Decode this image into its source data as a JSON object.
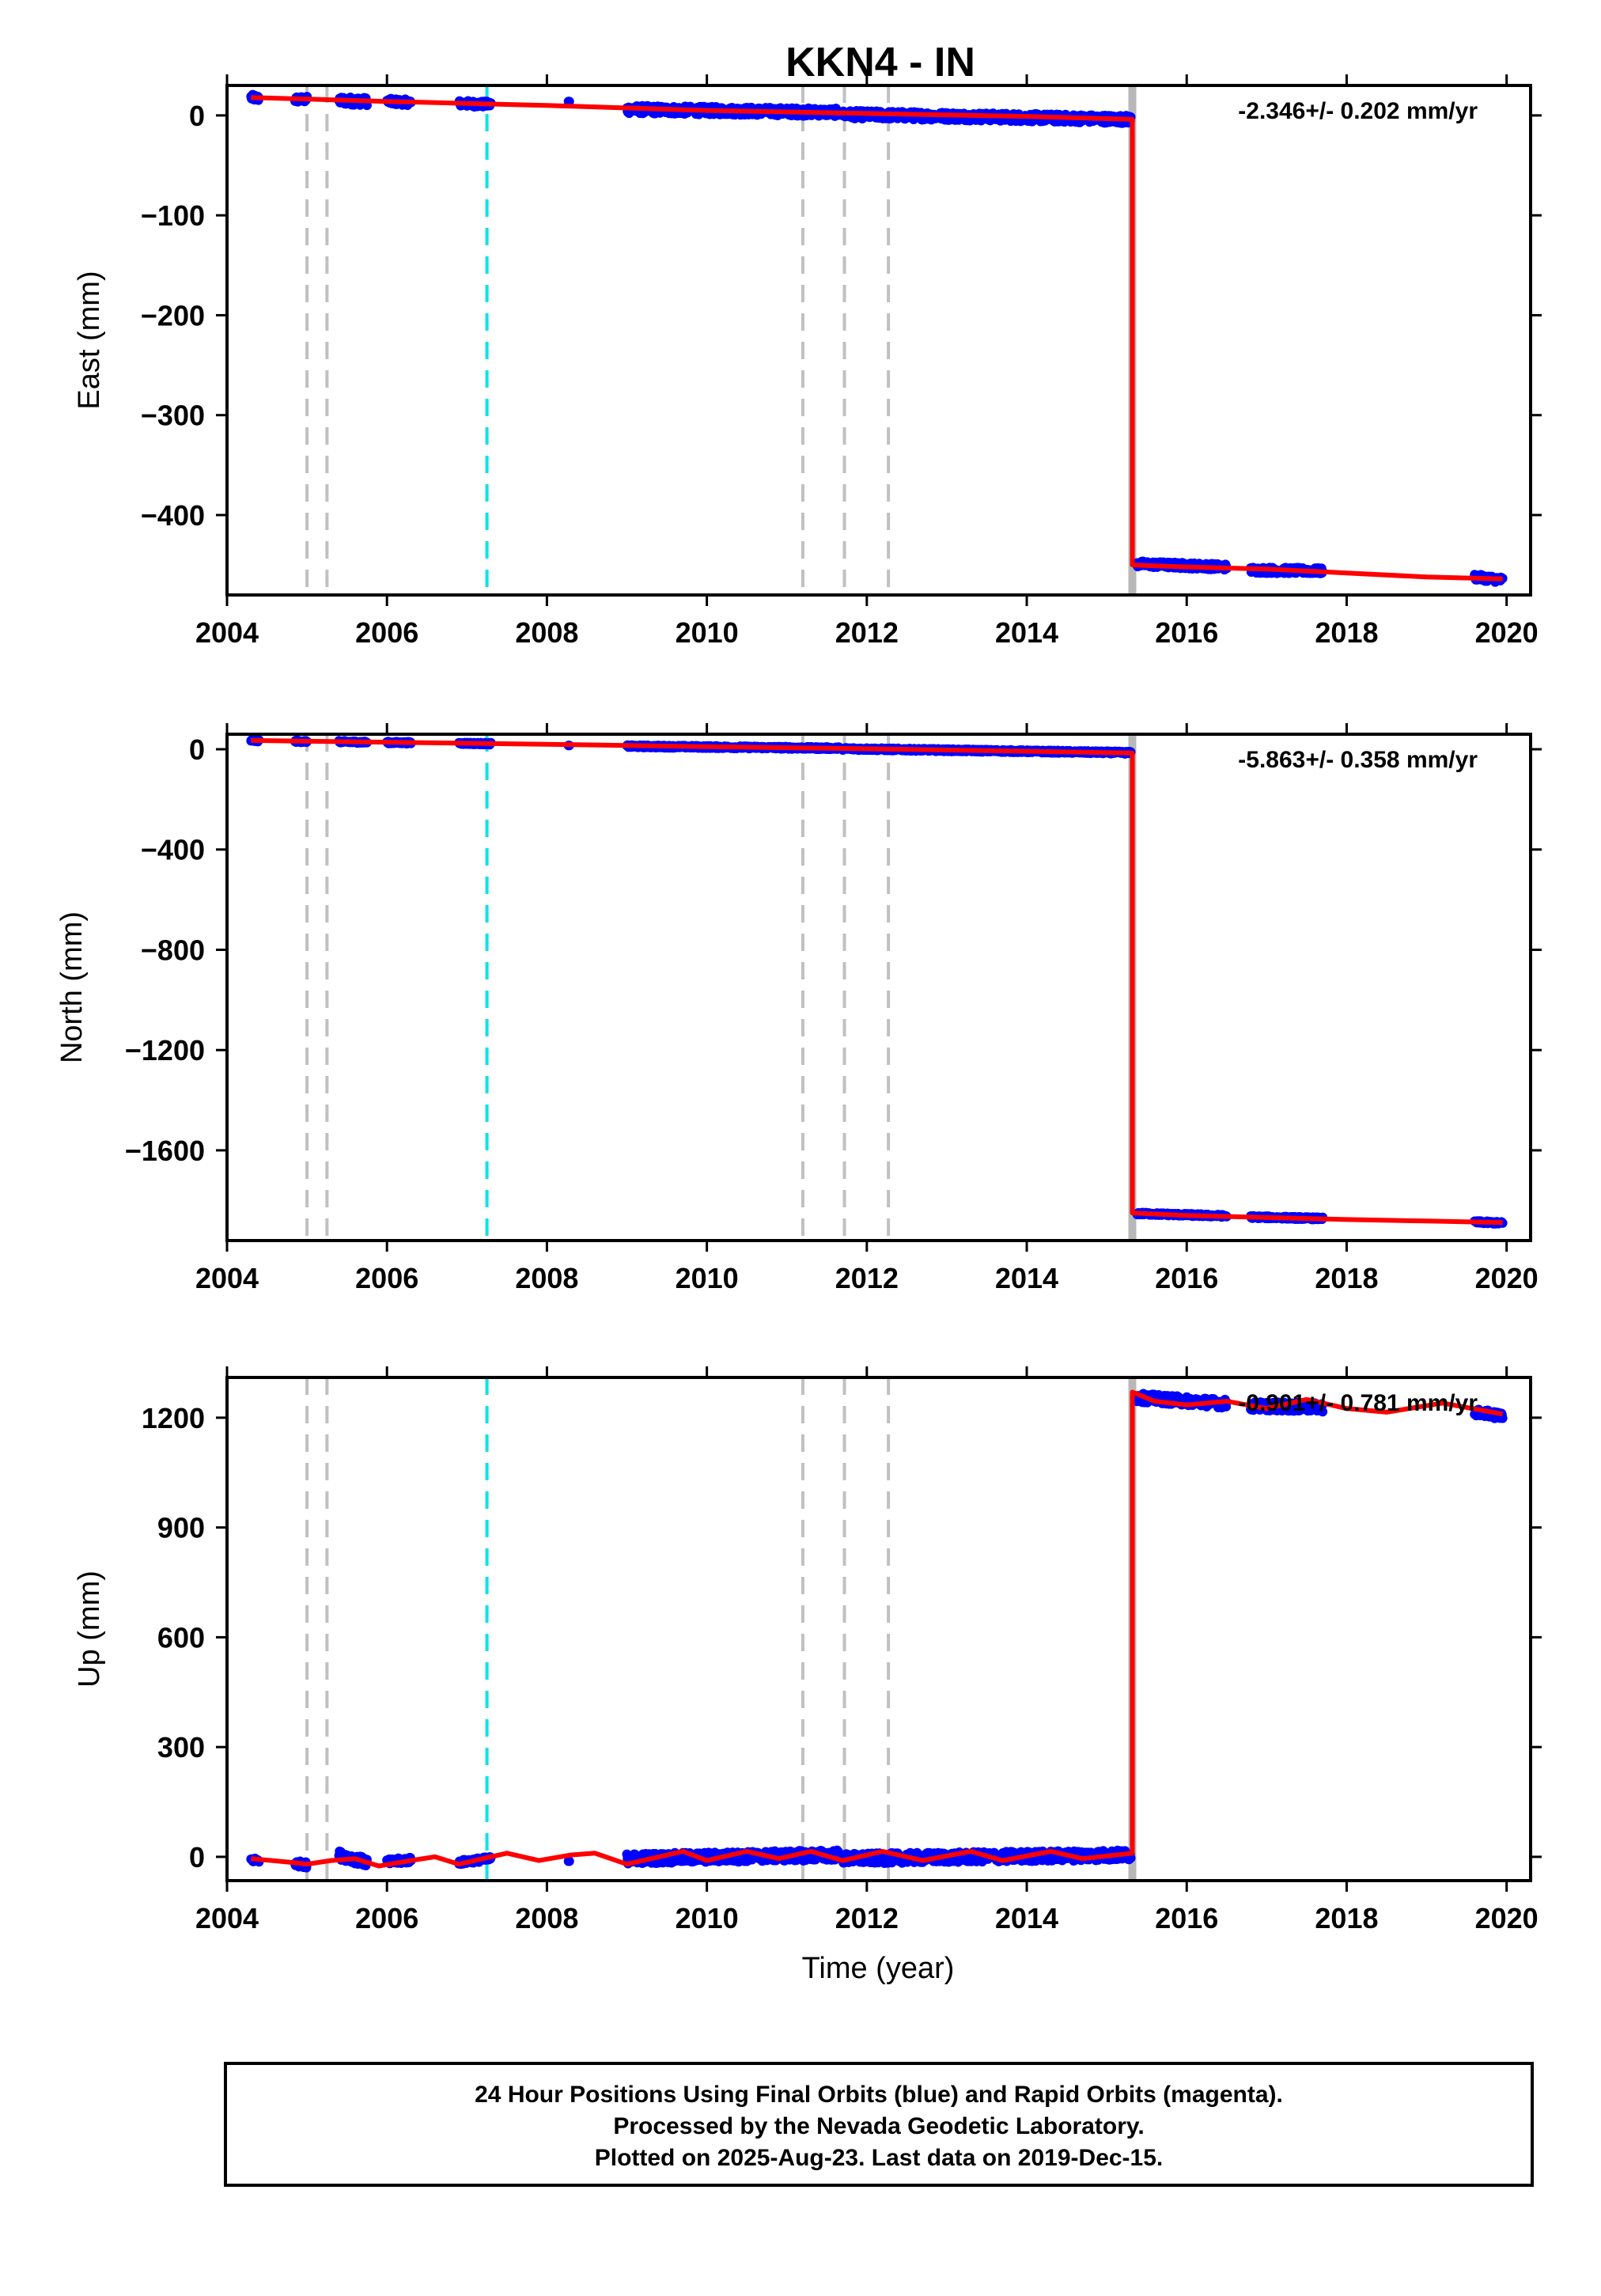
{
  "title": "KKN4 - IN",
  "xlabel": "Time (year)",
  "footer": {
    "line1": "24 Hour Positions Using Final Orbits (blue) and Rapid Orbits (magenta).",
    "line2": "Processed by the Nevada Geodetic Laboratory.",
    "line3": "Plotted on 2025-Aug-23. Last data on 2019-Dec-15."
  },
  "colors": {
    "data_points": "#0000ff",
    "model_line": "#ff0000",
    "event_gray": "#c0c0c0",
    "event_cyan": "#00e5ee",
    "equipment_bar": "#b8b8b8"
  },
  "chart_data": [
    {
      "type": "scatter",
      "panel": "East",
      "ylabel": "East (mm)",
      "rate_text": "-2.346+/- 0.202 mm/yr",
      "xlim": [
        2004.0,
        2020.3
      ],
      "ylim": [
        -480,
        30
      ],
      "xticks": [
        2004,
        2006,
        2008,
        2010,
        2012,
        2014,
        2016,
        2018,
        2020
      ],
      "yticks": [
        0,
        -100,
        -200,
        -300,
        -400
      ],
      "ytick_labels": [
        "0",
        "−100",
        "−200",
        "−300",
        "−400"
      ],
      "event_lines_gray": [
        2005.0,
        2005.25,
        2011.2,
        2011.72,
        2012.27
      ],
      "event_lines_cyan": [
        2007.25
      ],
      "offset_epoch": 2015.32,
      "model_line": [
        [
          2004.3,
          18
        ],
        [
          2006.0,
          14
        ],
        [
          2008.0,
          10
        ],
        [
          2010.0,
          5
        ],
        [
          2012.0,
          2
        ],
        [
          2014.0,
          -1
        ],
        [
          2015.32,
          -4
        ],
        [
          2015.32,
          -450
        ],
        [
          2016.0,
          -452
        ],
        [
          2017.0,
          -454
        ],
        [
          2018.0,
          -458
        ],
        [
          2019.0,
          -462
        ],
        [
          2019.95,
          -464
        ]
      ],
      "data_segments": [
        {
          "x0": 2004.3,
          "x1": 2004.4,
          "y0": 18,
          "y1": 17,
          "noise": 3
        },
        {
          "x0": 2004.85,
          "x1": 2005.0,
          "y0": 16,
          "y1": 16,
          "noise": 3
        },
        {
          "x0": 2005.4,
          "x1": 2005.75,
          "y0": 15,
          "y1": 14,
          "noise": 4
        },
        {
          "x0": 2006.0,
          "x1": 2006.3,
          "y0": 14,
          "y1": 13,
          "noise": 3
        },
        {
          "x0": 2006.9,
          "x1": 2007.3,
          "y0": 12,
          "y1": 11,
          "noise": 3
        },
        {
          "x0": 2008.27,
          "x1": 2008.28,
          "y0": 14,
          "y1": 14,
          "noise": 0
        },
        {
          "x0": 2009.0,
          "x1": 2011.65,
          "y0": 6,
          "y1": 3,
          "noise": 4
        },
        {
          "x0": 2011.7,
          "x1": 2015.3,
          "y0": 1,
          "y1": -4,
          "noise": 4
        },
        {
          "x0": 2015.38,
          "x1": 2016.5,
          "y0": -449,
          "y1": -452,
          "noise": 3
        },
        {
          "x0": 2016.8,
          "x1": 2017.7,
          "y0": -455,
          "y1": -456,
          "noise": 3
        },
        {
          "x0": 2019.6,
          "x1": 2019.95,
          "y0": -462,
          "y1": -465,
          "noise": 3
        }
      ]
    },
    {
      "type": "scatter",
      "panel": "North",
      "ylabel": "North (mm)",
      "rate_text": "-5.863+/- 0.358 mm/yr",
      "xlim": [
        2004.0,
        2020.3
      ],
      "ylim": [
        -1960,
        60
      ],
      "xticks": [
        2004,
        2006,
        2008,
        2010,
        2012,
        2014,
        2016,
        2018,
        2020
      ],
      "yticks": [
        0,
        -400,
        -800,
        -1200,
        -1600
      ],
      "ytick_labels": [
        "0",
        "−400",
        "−800",
        "−1200",
        "−1600"
      ],
      "event_lines_gray": [
        2005.0,
        2005.25,
        2011.2,
        2011.72,
        2012.27
      ],
      "event_lines_cyan": [
        2007.25
      ],
      "offset_epoch": 2015.32,
      "model_line": [
        [
          2004.3,
          35
        ],
        [
          2006.0,
          28
        ],
        [
          2008.0,
          20
        ],
        [
          2010.0,
          10
        ],
        [
          2012.0,
          2
        ],
        [
          2014.0,
          -8
        ],
        [
          2015.32,
          -15
        ],
        [
          2015.32,
          -1850
        ],
        [
          2016.0,
          -1860
        ],
        [
          2017.0,
          -1868
        ],
        [
          2018.0,
          -1876
        ],
        [
          2019.0,
          -1882
        ],
        [
          2019.95,
          -1888
        ]
      ],
      "data_segments": [
        {
          "x0": 2004.3,
          "x1": 2004.4,
          "y0": 35,
          "y1": 34,
          "noise": 4
        },
        {
          "x0": 2004.85,
          "x1": 2005.0,
          "y0": 32,
          "y1": 31,
          "noise": 4
        },
        {
          "x0": 2005.4,
          "x1": 2005.75,
          "y0": 30,
          "y1": 28,
          "noise": 4
        },
        {
          "x0": 2006.0,
          "x1": 2006.3,
          "y0": 27,
          "y1": 26,
          "noise": 4
        },
        {
          "x0": 2006.9,
          "x1": 2007.3,
          "y0": 24,
          "y1": 22,
          "noise": 4
        },
        {
          "x0": 2008.27,
          "x1": 2008.28,
          "y0": 15,
          "y1": 15,
          "noise": 0
        },
        {
          "x0": 2009.0,
          "x1": 2011.65,
          "y0": 12,
          "y1": 4,
          "noise": 5
        },
        {
          "x0": 2011.7,
          "x1": 2015.3,
          "y0": 2,
          "y1": -14,
          "noise": 5
        },
        {
          "x0": 2015.38,
          "x1": 2016.5,
          "y0": -1852,
          "y1": -1862,
          "noise": 5
        },
        {
          "x0": 2016.8,
          "x1": 2017.7,
          "y0": -1866,
          "y1": -1872,
          "noise": 5
        },
        {
          "x0": 2019.6,
          "x1": 2019.95,
          "y0": -1886,
          "y1": -1890,
          "noise": 5
        }
      ]
    },
    {
      "type": "scatter",
      "panel": "Up",
      "ylabel": "Up (mm)",
      "rate_text": "-0.901+/- 0.781 mm/yr",
      "xlim": [
        2004.0,
        2020.3
      ],
      "ylim": [
        -65,
        1310
      ],
      "xticks": [
        2004,
        2006,
        2008,
        2010,
        2012,
        2014,
        2016,
        2018,
        2020
      ],
      "yticks": [
        0,
        300,
        600,
        900,
        1200
      ],
      "ytick_labels": [
        "0",
        "300",
        "600",
        "900",
        "1200"
      ],
      "event_lines_gray": [
        2005.0,
        2005.25,
        2011.2,
        2011.72,
        2012.27
      ],
      "event_lines_cyan": [
        2007.25
      ],
      "offset_epoch": 2015.32,
      "model_line": [
        [
          2004.3,
          -5
        ],
        [
          2004.8,
          -15
        ],
        [
          2005.0,
          -20
        ],
        [
          2005.3,
          -10
        ],
        [
          2005.6,
          -5
        ],
        [
          2005.9,
          -25
        ],
        [
          2006.3,
          -10
        ],
        [
          2006.6,
          0
        ],
        [
          2006.9,
          -20
        ],
        [
          2007.2,
          -5
        ],
        [
          2007.5,
          10
        ],
        [
          2007.9,
          -10
        ],
        [
          2008.3,
          5
        ],
        [
          2008.6,
          10
        ],
        [
          2009.0,
          -20
        ],
        [
          2009.4,
          0
        ],
        [
          2009.7,
          15
        ],
        [
          2010.0,
          -10
        ],
        [
          2010.5,
          15
        ],
        [
          2010.9,
          -5
        ],
        [
          2011.3,
          15
        ],
        [
          2011.7,
          -10
        ],
        [
          2012.2,
          15
        ],
        [
          2012.7,
          -10
        ],
        [
          2013.3,
          15
        ],
        [
          2013.7,
          -10
        ],
        [
          2014.3,
          15
        ],
        [
          2014.7,
          -5
        ],
        [
          2015.32,
          10
        ],
        [
          2015.32,
          1270
        ],
        [
          2015.6,
          1245
        ],
        [
          2016.0,
          1235
        ],
        [
          2016.5,
          1245
        ],
        [
          2017.0,
          1225
        ],
        [
          2017.5,
          1250
        ],
        [
          2018.0,
          1225
        ],
        [
          2018.5,
          1215
        ],
        [
          2019.2,
          1240
        ],
        [
          2019.95,
          1210
        ]
      ],
      "data_segments": [
        {
          "x0": 2004.3,
          "x1": 2004.4,
          "y0": -8,
          "y1": -10,
          "noise": 6
        },
        {
          "x0": 2004.85,
          "x1": 2005.0,
          "y0": -18,
          "y1": -22,
          "noise": 8
        },
        {
          "x0": 2005.4,
          "x1": 2005.75,
          "y0": 5,
          "y1": -15,
          "noise": 12
        },
        {
          "x0": 2006.0,
          "x1": 2006.3,
          "y0": -15,
          "y1": -8,
          "noise": 8
        },
        {
          "x0": 2006.9,
          "x1": 2007.3,
          "y0": -15,
          "y1": -5,
          "noise": 6
        },
        {
          "x0": 2008.27,
          "x1": 2008.28,
          "y0": -12,
          "y1": -12,
          "noise": 0
        },
        {
          "x0": 2009.0,
          "x1": 2011.65,
          "y0": -5,
          "y1": 5,
          "noise": 14
        },
        {
          "x0": 2011.7,
          "x1": 2015.3,
          "y0": -5,
          "y1": 5,
          "noise": 14
        },
        {
          "x0": 2015.38,
          "x1": 2016.5,
          "y0": 1255,
          "y1": 1238,
          "noise": 12
        },
        {
          "x0": 2016.8,
          "x1": 2017.7,
          "y0": 1232,
          "y1": 1228,
          "noise": 12
        },
        {
          "x0": 2019.6,
          "x1": 2019.95,
          "y0": 1215,
          "y1": 1205,
          "noise": 10
        }
      ]
    }
  ]
}
